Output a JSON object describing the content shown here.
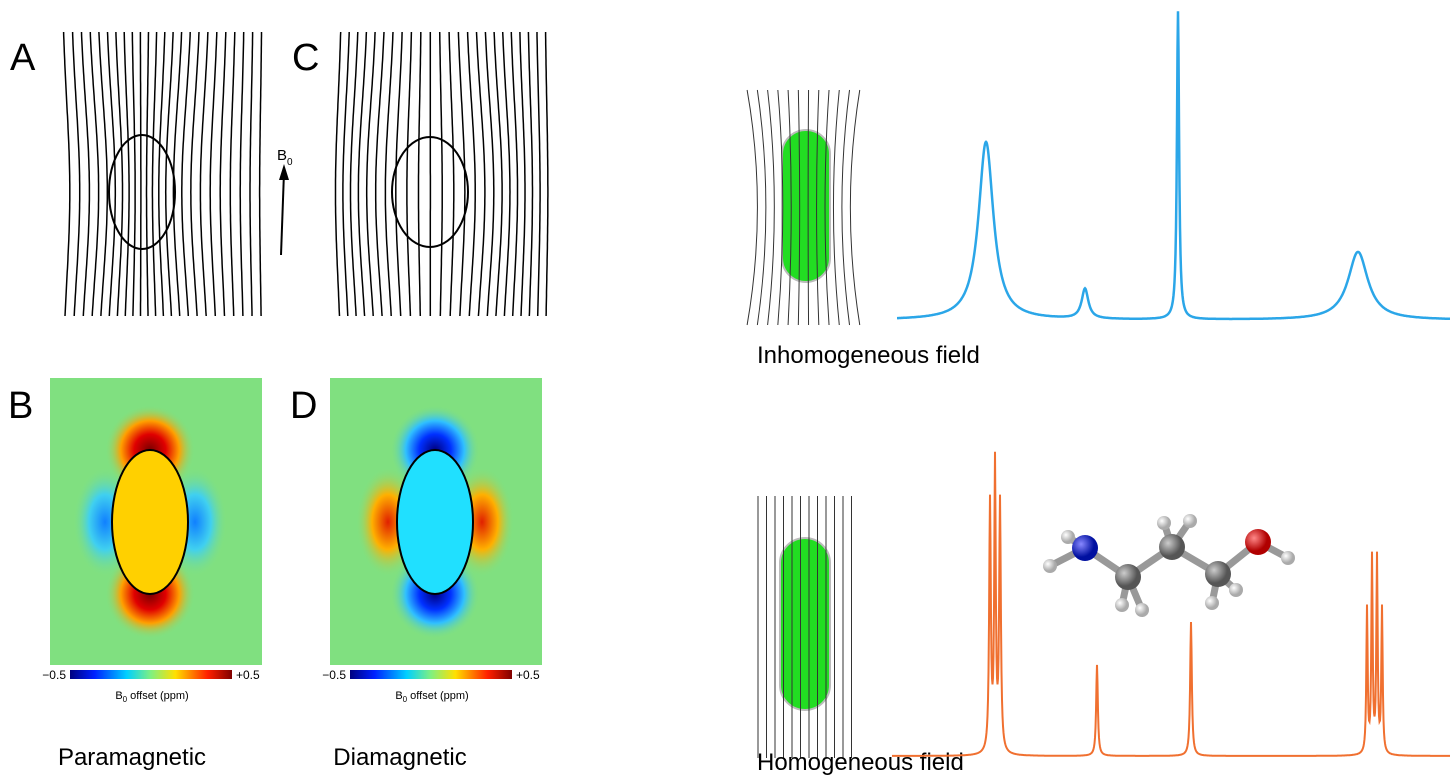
{
  "left": {
    "panels": {
      "A": "A",
      "B": "B",
      "C": "C",
      "D": "D"
    },
    "field_label": {
      "main": "B",
      "sub": "0"
    },
    "colorbar": {
      "min": "−0.5",
      "max": "+0.5",
      "axis_main": "B",
      "axis_sub": "0",
      "axis_rest": " offset (ppm)"
    },
    "captions": {
      "paramagnetic": "Paramagnetic",
      "diamagnetic": "Diamagnetic"
    }
  },
  "right": {
    "inhomogeneous": "Inhomogeneous field",
    "homogeneous": "Homogeneous field"
  }
}
